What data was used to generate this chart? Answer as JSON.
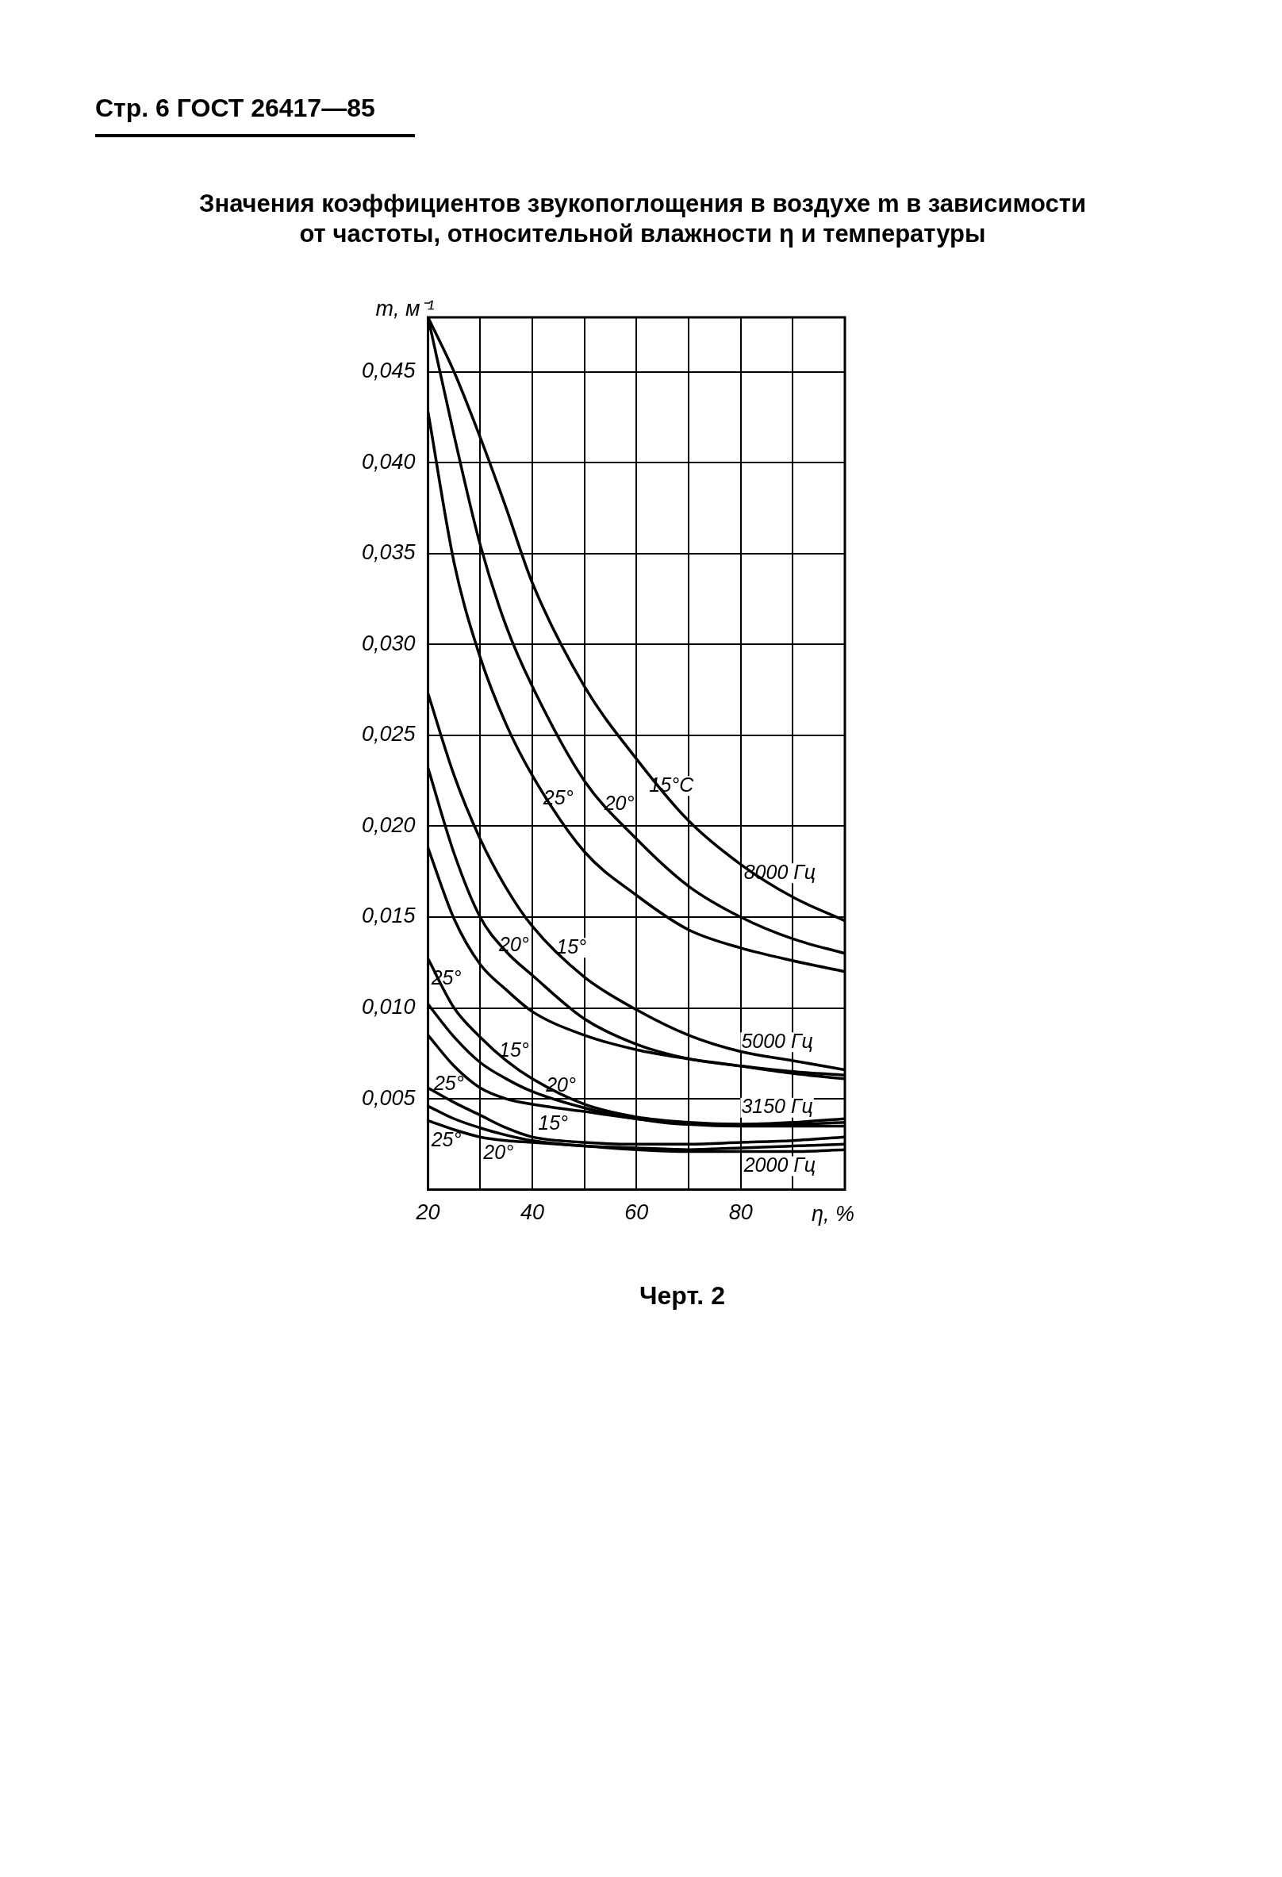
{
  "chart_data": {
    "type": "line",
    "title": "Значения коэффициентов звукопоглощения в воздухе m в зависимости от частоты, относительной влажности η и температуры",
    "xlabel": "η, %",
    "ylabel": "m, м⁻¹",
    "x": [
      20,
      25,
      30,
      35,
      40,
      50,
      60,
      70,
      80,
      90,
      100
    ],
    "series": [
      {
        "color": "#000000",
        "values": [
          0.048,
          0.045,
          0.0414,
          0.0375,
          0.0334,
          0.0277,
          0.0237,
          0.0203,
          0.0179,
          0.0161,
          0.0148
        ]
      },
      {
        "color": "#000000",
        "values": [
          0.048,
          0.0415,
          0.0355,
          0.031,
          0.0277,
          0.0225,
          0.0193,
          0.0167,
          0.015,
          0.0138,
          0.013
        ]
      },
      {
        "color": "#000000",
        "values": [
          0.0428,
          0.0345,
          0.0293,
          0.0256,
          0.0228,
          0.0186,
          0.0162,
          0.0143,
          0.0133,
          0.0126,
          0.012
        ]
      },
      {
        "color": "#000000",
        "values": [
          0.0273,
          0.0228,
          0.0193,
          0.0166,
          0.0145,
          0.0117,
          0.0099,
          0.0085,
          0.0076,
          0.0071,
          0.0066
        ]
      },
      {
        "color": "#000000",
        "values": [
          0.0232,
          0.0185,
          0.015,
          0.0131,
          0.0118,
          0.0094,
          0.008,
          0.0072,
          0.0068,
          0.0065,
          0.0063
        ]
      },
      {
        "color": "#000000",
        "values": [
          0.0188,
          0.0149,
          0.0124,
          0.011,
          0.0098,
          0.0085,
          0.0077,
          0.0072,
          0.0068,
          0.0064,
          0.0061
        ]
      },
      {
        "color": "#000000",
        "values": [
          0.0127,
          0.01,
          0.0084,
          0.0071,
          0.0061,
          0.0047,
          0.004,
          0.0037,
          0.0036,
          0.0037,
          0.0039
        ]
      },
      {
        "color": "#000000",
        "values": [
          0.0102,
          0.0084,
          0.007,
          0.0061,
          0.0054,
          0.0045,
          0.0039,
          0.0036,
          0.0036,
          0.0036,
          0.0037
        ]
      },
      {
        "color": "#000000",
        "values": [
          0.0085,
          0.0068,
          0.0056,
          0.005,
          0.0047,
          0.0043,
          0.0039,
          0.0036,
          0.0035,
          0.0035,
          0.0035
        ]
      },
      {
        "color": "#000000",
        "values": [
          0.0056,
          0.0048,
          0.0041,
          0.0034,
          0.0029,
          0.0026,
          0.0025,
          0.0025,
          0.0026,
          0.0027,
          0.0029
        ]
      },
      {
        "color": "#000000",
        "values": [
          0.0046,
          0.0039,
          0.0034,
          0.003,
          0.0027,
          0.0024,
          0.0023,
          0.0022,
          0.0023,
          0.0024,
          0.0025
        ]
      },
      {
        "color": "#000000",
        "values": [
          0.0038,
          0.0033,
          0.0029,
          0.0027,
          0.0026,
          0.0024,
          0.0022,
          0.0021,
          0.0021,
          0.0021,
          0.0022
        ]
      }
    ],
    "xlim": [
      20,
      100
    ],
    "xticks": [
      20,
      {
        "value": 30,
        "label": null
      },
      40,
      {
        "value": 50,
        "label": null
      },
      60,
      {
        "value": 70,
        "label": null
      },
      80,
      {
        "value": 90,
        "label": null
      },
      {
        "value": 100,
        "label": null
      }
    ],
    "ylim": [
      0,
      0.048
    ],
    "yticks": [
      {
        "value": 0,
        "label": null
      },
      {
        "value": 0.005,
        "label": "0,005"
      },
      {
        "value": 0.01,
        "label": "0,010"
      },
      {
        "value": 0.015,
        "label": "0,015"
      },
      {
        "value": 0.02,
        "label": "0,020"
      },
      {
        "value": 0.025,
        "label": "0,025"
      },
      {
        "value": 0.03,
        "label": "0,030"
      },
      {
        "value": 0.035,
        "label": "0,035"
      },
      {
        "value": 0.04,
        "label": "0,040"
      },
      {
        "value": 0.045,
        "label": "0,045"
      }
    ],
    "grid": true,
    "legend": false,
    "marker": "none",
    "line_style": "solid",
    "annotations": [
      "Стр. 6 ГОСТ 26417—85",
      "Черт. 2",
      {
        "text": "15°C",
        "x": 66.7,
        "y": 0.0214
      },
      {
        "text": "20°",
        "x": 56.7,
        "y": 0.0204
      },
      {
        "text": "25°",
        "x": 45,
        "y": 0.0207
      },
      {
        "text": "8000 Гц",
        "x": 87.5,
        "y": 0.0166
      },
      {
        "text": "25°",
        "x": 23.5,
        "y": 0.0108
      },
      {
        "text": "20°",
        "x": 36.5,
        "y": 0.0126
      },
      {
        "text": "15°",
        "x": 47.5,
        "y": 0.0125
      },
      {
        "text": "5000 Гц",
        "x": 87,
        "y": 0.0073
      },
      {
        "text": "15°",
        "x": 36.5,
        "y": 0.0068
      },
      {
        "text": "20°",
        "x": 45.5,
        "y": 0.0049
      },
      {
        "text": "25°",
        "x": 24,
        "y": 0.005
      },
      {
        "text": "3150 Гц",
        "x": 87,
        "y": 0.0037
      },
      {
        "text": "15°",
        "x": 44,
        "y": 0.0028
      },
      {
        "text": "20°",
        "x": 33.5,
        "y": 0.0028
      },
      {
        "text": "25°",
        "x": 23.5,
        "y": 0.0035
      },
      {
        "text": "2000 Гц",
        "x": 87.5,
        "y": 0.0021
      }
    ]
  }
}
